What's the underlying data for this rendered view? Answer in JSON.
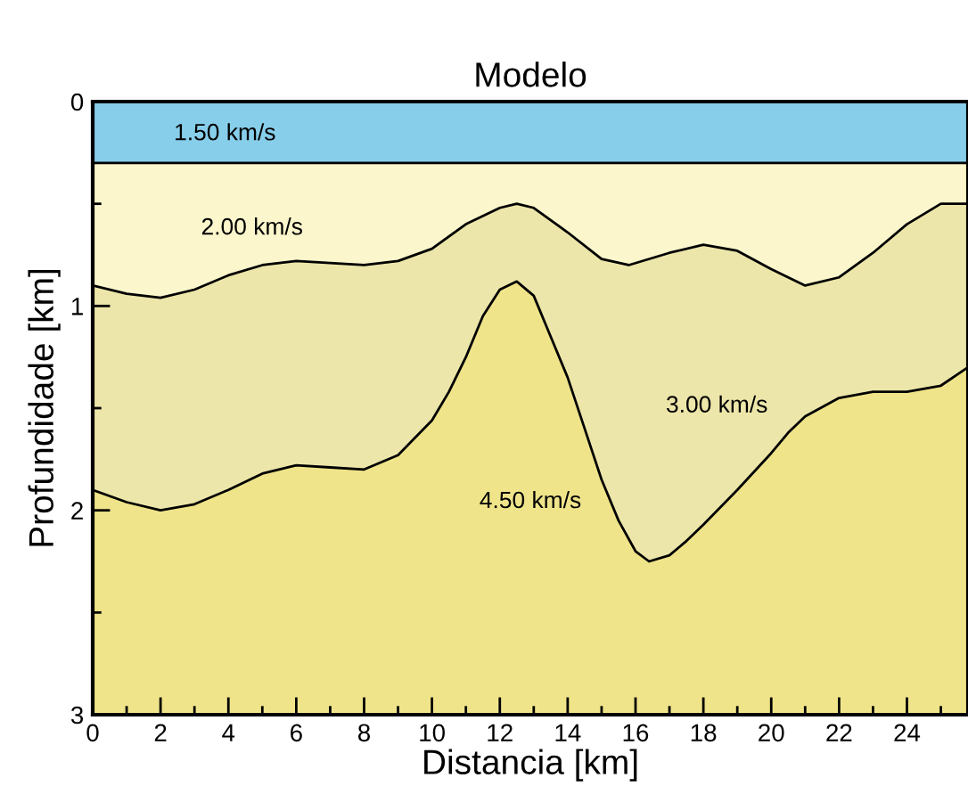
{
  "chart_data": {
    "type": "area",
    "title": "Modelo",
    "xlabel": "Distancia [km]",
    "ylabel": "Profundidade [km]",
    "series": [
      {
        "color": "#87ceeb",
        "x": [
          0,
          25.8
        ],
        "values": [
          0.3,
          0.3
        ]
      },
      {
        "color": "#fbf6cb",
        "x": [
          0,
          1,
          2,
          3,
          4,
          5,
          6,
          7,
          8,
          9,
          10,
          11,
          12,
          12.5,
          13,
          14,
          15,
          15.8,
          17,
          18,
          19,
          20,
          21,
          22,
          23,
          24,
          25,
          25.8
        ],
        "values": [
          0.9,
          0.94,
          0.96,
          0.92,
          0.85,
          0.8,
          0.78,
          0.79,
          0.8,
          0.78,
          0.72,
          0.6,
          0.52,
          0.5,
          0.52,
          0.64,
          0.77,
          0.8,
          0.74,
          0.7,
          0.73,
          0.82,
          0.9,
          0.86,
          0.74,
          0.6,
          0.5,
          0.5
        ]
      },
      {
        "color": "#ede6aa",
        "x": [
          0,
          1,
          2,
          3,
          4,
          5,
          6,
          7,
          8,
          9,
          10,
          10.5,
          11,
          11.5,
          12,
          12.5,
          13,
          13.5,
          14,
          14.5,
          15,
          15.5,
          16,
          16.4,
          17,
          17.5,
          18,
          19,
          20,
          20.5,
          21,
          22,
          23,
          24,
          25,
          25.8
        ],
        "values": [
          1.9,
          1.96,
          2.0,
          1.97,
          1.9,
          1.82,
          1.78,
          1.79,
          1.8,
          1.73,
          1.56,
          1.42,
          1.25,
          1.05,
          0.92,
          0.88,
          0.95,
          1.15,
          1.35,
          1.6,
          1.85,
          2.05,
          2.2,
          2.25,
          2.22,
          2.15,
          2.07,
          1.9,
          1.72,
          1.62,
          1.54,
          1.45,
          1.42,
          1.42,
          1.39,
          1.3
        ]
      }
    ],
    "xlim": [
      0,
      25.8
    ],
    "ylim": [
      3,
      0
    ],
    "xticks": [
      0,
      {
        "value": 1,
        "label": null
      },
      2,
      {
        "value": 3,
        "label": null
      },
      4,
      {
        "value": 5,
        "label": null
      },
      6,
      {
        "value": 7,
        "label": null
      },
      8,
      {
        "value": 9,
        "label": null
      },
      10,
      {
        "value": 11,
        "label": null
      },
      12,
      {
        "value": 13,
        "label": null
      },
      14,
      {
        "value": 15,
        "label": null
      },
      16,
      {
        "value": 17,
        "label": null
      },
      18,
      {
        "value": 19,
        "label": null
      },
      20,
      {
        "value": 21,
        "label": null
      },
      22,
      {
        "value": 23,
        "label": null
      },
      24,
      {
        "value": 25,
        "label": null
      }
    ],
    "yticks": [
      0,
      {
        "value": 0.5,
        "label": null
      },
      1,
      {
        "value": 1.5,
        "label": null
      },
      2,
      {
        "value": 2.5,
        "label": null
      },
      3
    ],
    "grid": false,
    "bands": [
      {
        "axis": "y",
        "from": 0,
        "to": 3,
        "color": "#efe48a"
      }
    ],
    "annotations": [
      "1.50 km/s",
      "2.00 km/s",
      "3.00 km/s",
      "4.50 km/s"
    ]
  }
}
